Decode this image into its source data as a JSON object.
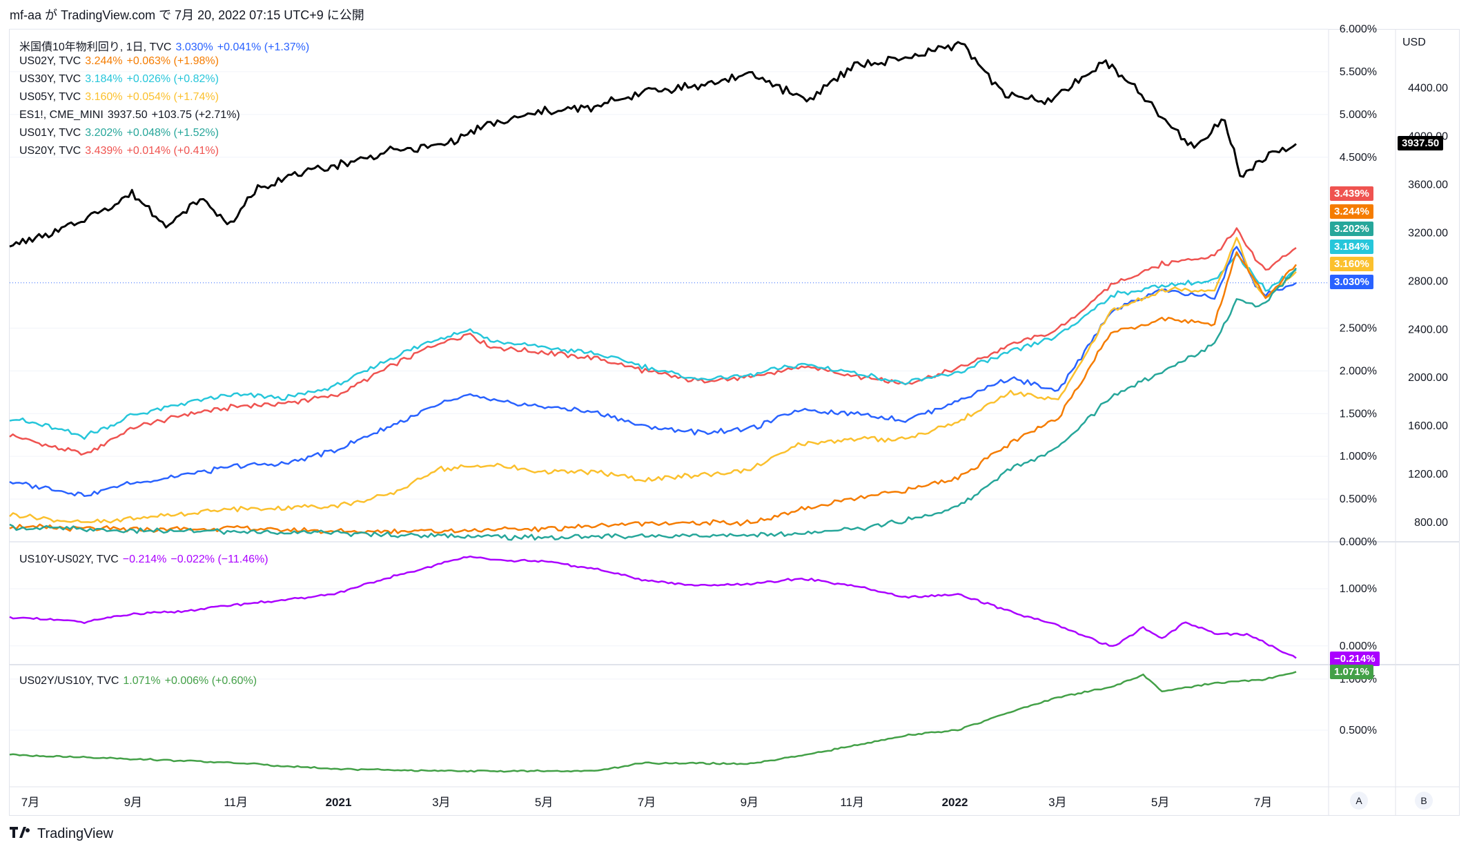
{
  "header": {
    "text": "mf-aa が TradingView.com で 7月 20, 2022 07:15 UTC+9 に公開"
  },
  "footer": {
    "brand": "TradingView",
    "logo": "tradingview-logo"
  },
  "axis_buttons": {
    "a": "A",
    "b": "B"
  },
  "colors": {
    "us10y": "#2962ff",
    "us02y": "#f57c00",
    "us30y": "#26c6da",
    "us05y": "#fbc02d",
    "es1": "#000000",
    "us01y": "#26a69a",
    "us20y": "#ef5350",
    "spread": "#aa00ff",
    "ratio": "#43a047",
    "grid": "#f0f3fa",
    "axis_text": "#131722"
  },
  "legend_main": [
    {
      "name": "米国債10年物利回り, 1日, TVC",
      "value": "3.030%",
      "change": "+0.041% (+1.37%)",
      "color": "#2962ff"
    },
    {
      "name": "US02Y, TVC",
      "value": "3.244%",
      "change": "+0.063% (+1.98%)",
      "color": "#f57c00"
    },
    {
      "name": "US30Y, TVC",
      "value": "3.184%",
      "change": "+0.026% (+0.82%)",
      "color": "#26c6da"
    },
    {
      "name": "US05Y, TVC",
      "value": "3.160%",
      "change": "+0.054% (+1.74%)",
      "color": "#fbc02d"
    },
    {
      "name": "ES1!, CME_MINI",
      "value": "3937.50",
      "change": "+103.75 (+2.71%)",
      "color": "#131722"
    },
    {
      "name": "US01Y, TVC",
      "value": "3.202%",
      "change": "+0.048% (+1.52%)",
      "color": "#26a69a"
    },
    {
      "name": "US20Y, TVC",
      "value": "3.439%",
      "change": "+0.014% (+0.41%)",
      "color": "#ef5350"
    }
  ],
  "legend_spread": {
    "name": "US10Y-US02Y, TVC",
    "value": "−0.214%",
    "change": "−0.022% (−11.46%)",
    "color": "#aa00ff"
  },
  "legend_ratio": {
    "name": "US02Y/US10Y, TVC",
    "value": "1.071%",
    "change": "+0.006% (+0.60%)",
    "color": "#43a047"
  },
  "chart_data": [
    {
      "type": "line",
      "panel": "main",
      "x_ticks": [
        "7月",
        "9月",
        "11月",
        "2021",
        "3月",
        "5月",
        "7月",
        "9月",
        "11月",
        "2022",
        "3月",
        "5月",
        "7月"
      ],
      "y_left_ticks": [
        "6.000%",
        "5.500%",
        "5.000%",
        "4.500%",
        "2.500%",
        "2.000%",
        "1.500%",
        "1.000%",
        "0.500%",
        "0.000%"
      ],
      "y_right_label": "USD",
      "y_right_ticks": [
        "4400.00",
        "4000.00",
        "3600.00",
        "3200.00",
        "2800.00",
        "2400.00",
        "2000.00",
        "1600.00",
        "1200.00",
        "800.00"
      ],
      "y_left_range": [
        0,
        6
      ],
      "y_right_range": [
        640,
        4890
      ],
      "last_value_badges": [
        {
          "label": "3937.50",
          "color": "#000000"
        },
        {
          "label": "3.439%",
          "color": "#ef5350"
        },
        {
          "label": "3.244%",
          "color": "#f57c00"
        },
        {
          "label": "3.202%",
          "color": "#26a69a"
        },
        {
          "label": "3.184%",
          "color": "#26c6da"
        },
        {
          "label": "3.160%",
          "color": "#fbc02d"
        },
        {
          "label": "3.030%",
          "color": "#2962ff"
        }
      ],
      "x_range": [
        "2020-06-22",
        "2022-07-19"
      ],
      "series": [
        {
          "name": "US20Y",
          "axis": "left",
          "color": "#ef5350",
          "x": [
            "2020-06-22",
            "2020-07-15",
            "2020-08-05",
            "2020-09-01",
            "2020-10-01",
            "2020-11-01",
            "2020-12-01",
            "2021-01-01",
            "2021-02-01",
            "2021-03-01",
            "2021-03-20",
            "2021-04-01",
            "2021-05-01",
            "2021-06-01",
            "2021-07-01",
            "2021-08-01",
            "2021-09-01",
            "2021-10-01",
            "2021-11-01",
            "2021-12-01",
            "2022-01-01",
            "2022-02-01",
            "2022-03-01",
            "2022-04-01",
            "2022-05-01",
            "2022-06-01",
            "2022-06-14",
            "2022-06-25",
            "2022-07-01",
            "2022-07-19"
          ],
          "y": [
            1.25,
            1.12,
            1.02,
            1.32,
            1.48,
            1.58,
            1.62,
            1.72,
            2.05,
            2.32,
            2.43,
            2.28,
            2.22,
            2.15,
            2.0,
            1.88,
            1.92,
            2.05,
            1.95,
            1.85,
            2.02,
            2.3,
            2.48,
            3.0,
            3.25,
            3.35,
            3.65,
            3.3,
            3.18,
            3.439
          ]
        },
        {
          "name": "US30Y",
          "axis": "left",
          "color": "#26c6da",
          "x": [
            "2020-06-22",
            "2020-07-15",
            "2020-08-05",
            "2020-09-01",
            "2020-10-01",
            "2020-11-01",
            "2020-12-01",
            "2021-01-01",
            "2021-02-01",
            "2021-03-01",
            "2021-03-20",
            "2021-04-01",
            "2021-05-01",
            "2021-06-01",
            "2021-07-01",
            "2021-08-01",
            "2021-09-01",
            "2021-10-01",
            "2021-11-01",
            "2021-12-01",
            "2022-01-01",
            "2022-02-01",
            "2022-03-01",
            "2022-04-01",
            "2022-05-01",
            "2022-06-01",
            "2022-06-14",
            "2022-06-25",
            "2022-07-01",
            "2022-07-19"
          ],
          "y": [
            1.45,
            1.35,
            1.23,
            1.47,
            1.62,
            1.72,
            1.68,
            1.83,
            2.15,
            2.38,
            2.48,
            2.35,
            2.28,
            2.2,
            2.05,
            1.9,
            1.95,
            2.08,
            1.98,
            1.85,
            1.98,
            2.22,
            2.4,
            2.88,
            3.0,
            3.05,
            3.35,
            3.1,
            2.95,
            3.184
          ]
        },
        {
          "name": "US10Y",
          "axis": "left",
          "color": "#2962ff",
          "x": [
            "2020-06-22",
            "2020-07-15",
            "2020-08-05",
            "2020-09-01",
            "2020-10-01",
            "2020-11-01",
            "2020-12-01",
            "2021-01-01",
            "2021-02-01",
            "2021-03-01",
            "2021-03-20",
            "2021-04-01",
            "2021-05-01",
            "2021-06-01",
            "2021-07-01",
            "2021-08-01",
            "2021-09-01",
            "2021-10-01",
            "2021-11-01",
            "2021-12-01",
            "2022-01-01",
            "2022-02-01",
            "2022-03-01",
            "2022-04-01",
            "2022-05-01",
            "2022-06-01",
            "2022-06-14",
            "2022-06-25",
            "2022-07-01",
            "2022-07-19"
          ],
          "y": [
            0.7,
            0.62,
            0.55,
            0.68,
            0.78,
            0.88,
            0.92,
            1.08,
            1.35,
            1.6,
            1.72,
            1.65,
            1.58,
            1.52,
            1.35,
            1.28,
            1.32,
            1.55,
            1.5,
            1.42,
            1.65,
            1.92,
            1.75,
            2.7,
            2.95,
            2.85,
            3.48,
            3.0,
            2.88,
            3.03
          ]
        },
        {
          "name": "US05Y",
          "axis": "left",
          "color": "#fbc02d",
          "x": [
            "2020-06-22",
            "2020-08-05",
            "2020-09-01",
            "2020-10-01",
            "2020-11-01",
            "2020-12-01",
            "2021-01-01",
            "2021-02-01",
            "2021-03-01",
            "2021-04-01",
            "2021-05-01",
            "2021-06-01",
            "2021-07-01",
            "2021-08-01",
            "2021-09-01",
            "2021-10-01",
            "2021-11-01",
            "2021-12-01",
            "2022-01-01",
            "2022-02-01",
            "2022-03-01",
            "2022-04-01",
            "2022-05-01",
            "2022-06-01",
            "2022-06-14",
            "2022-06-25",
            "2022-07-01",
            "2022-07-19"
          ],
          "y": [
            0.32,
            0.22,
            0.27,
            0.33,
            0.38,
            0.4,
            0.42,
            0.55,
            0.85,
            0.9,
            0.82,
            0.82,
            0.72,
            0.78,
            0.85,
            1.15,
            1.2,
            1.2,
            1.4,
            1.75,
            1.65,
            2.7,
            2.95,
            2.95,
            3.55,
            3.0,
            2.85,
            3.16
          ]
        },
        {
          "name": "US02Y",
          "axis": "left",
          "color": "#f57c00",
          "x": [
            "2020-06-22",
            "2020-09-01",
            "2020-11-01",
            "2021-01-01",
            "2021-03-01",
            "2021-05-01",
            "2021-07-01",
            "2021-09-01",
            "2021-10-01",
            "2021-11-01",
            "2021-12-01",
            "2022-01-01",
            "2022-02-01",
            "2022-03-01",
            "2022-04-01",
            "2022-05-01",
            "2022-06-01",
            "2022-06-14",
            "2022-06-25",
            "2022-07-01",
            "2022-07-19"
          ],
          "y": [
            0.18,
            0.14,
            0.16,
            0.12,
            0.13,
            0.15,
            0.22,
            0.22,
            0.38,
            0.5,
            0.6,
            0.75,
            1.15,
            1.45,
            2.45,
            2.6,
            2.55,
            3.4,
            3.05,
            2.85,
            3.244
          ]
        },
        {
          "name": "US01Y",
          "axis": "left",
          "color": "#26a69a",
          "x": [
            "2020-06-22",
            "2020-09-01",
            "2020-11-01",
            "2021-01-01",
            "2021-03-01",
            "2021-05-01",
            "2021-07-01",
            "2021-09-01",
            "2021-10-01",
            "2021-11-01",
            "2021-12-01",
            "2022-01-01",
            "2022-02-01",
            "2022-03-01",
            "2022-04-01",
            "2022-05-01",
            "2022-06-01",
            "2022-06-14",
            "2022-06-25",
            "2022-07-01",
            "2022-07-19"
          ],
          "y": [
            0.17,
            0.13,
            0.12,
            0.1,
            0.07,
            0.05,
            0.07,
            0.08,
            0.09,
            0.15,
            0.25,
            0.4,
            0.85,
            1.1,
            1.7,
            2.0,
            2.3,
            2.85,
            2.75,
            2.8,
            3.202
          ]
        },
        {
          "name": "ES1!",
          "axis": "right",
          "color": "#000000",
          "x": [
            "2020-06-22",
            "2020-07-15",
            "2020-08-01",
            "2020-09-02",
            "2020-09-24",
            "2020-10-12",
            "2020-10-30",
            "2020-11-15",
            "2020-12-01",
            "2021-01-01",
            "2021-02-01",
            "2021-03-01",
            "2021-04-01",
            "2021-05-01",
            "2021-06-01",
            "2021-07-01",
            "2021-08-01",
            "2021-09-02",
            "2021-10-04",
            "2021-11-01",
            "2021-12-01",
            "2022-01-03",
            "2022-01-27",
            "2022-02-23",
            "2022-03-29",
            "2022-04-15",
            "2022-05-01",
            "2022-05-20",
            "2022-06-07",
            "2022-06-16",
            "2022-07-01",
            "2022-07-19"
          ],
          "y": [
            3100,
            3180,
            3280,
            3520,
            3260,
            3480,
            3270,
            3580,
            3660,
            3760,
            3880,
            3920,
            4100,
            4200,
            4240,
            4380,
            4420,
            4520,
            4300,
            4590,
            4640,
            4780,
            4360,
            4280,
            4620,
            4400,
            4150,
            3900,
            4150,
            3670,
            3820,
            3937.5
          ]
        }
      ]
    },
    {
      "type": "line",
      "panel": "spread",
      "y_ticks": [
        "1.000%",
        "0.000%"
      ],
      "y_range": [
        -0.22,
        1.7
      ],
      "last_value_badge": {
        "label": "−0.214%",
        "color": "#aa00ff"
      },
      "series": [
        {
          "name": "US10Y-US02Y",
          "color": "#aa00ff",
          "x": [
            "2020-06-22",
            "2020-08-05",
            "2020-09-01",
            "2020-10-01",
            "2020-11-01",
            "2020-12-01",
            "2021-01-01",
            "2021-02-01",
            "2021-03-01",
            "2021-03-20",
            "2021-04-01",
            "2021-05-01",
            "2021-06-01",
            "2021-07-01",
            "2021-08-01",
            "2021-09-01",
            "2021-10-01",
            "2021-11-01",
            "2021-12-01",
            "2022-01-01",
            "2022-02-01",
            "2022-03-01",
            "2022-04-02",
            "2022-04-20",
            "2022-05-01",
            "2022-05-15",
            "2022-06-01",
            "2022-06-20",
            "2022-07-01",
            "2022-07-19"
          ],
          "y": [
            0.5,
            0.42,
            0.55,
            0.6,
            0.72,
            0.8,
            0.92,
            1.2,
            1.42,
            1.58,
            1.5,
            1.48,
            1.35,
            1.15,
            1.05,
            1.08,
            1.18,
            1.05,
            0.85,
            0.9,
            0.6,
            0.35,
            -0.02,
            0.32,
            0.12,
            0.42,
            0.22,
            0.2,
            0.05,
            -0.214
          ]
        }
      ]
    },
    {
      "type": "line",
      "panel": "ratio",
      "y_ticks": [
        "1.000%",
        "0.500%"
      ],
      "y_range": [
        0.0,
        1.08
      ],
      "last_value_badge": {
        "label": "1.071%",
        "color": "#43a047"
      },
      "series": [
        {
          "name": "US02Y/US10Y",
          "color": "#43a047",
          "x": [
            "2020-06-22",
            "2020-09-01",
            "2020-11-01",
            "2021-01-01",
            "2021-03-01",
            "2021-04-01",
            "2021-06-01",
            "2021-07-01",
            "2021-09-01",
            "2021-10-01",
            "2021-11-01",
            "2021-12-01",
            "2022-01-01",
            "2022-02-01",
            "2022-03-01",
            "2022-04-01",
            "2022-04-20",
            "2022-05-01",
            "2022-06-01",
            "2022-07-01",
            "2022-07-19"
          ],
          "y": [
            0.26,
            0.22,
            0.18,
            0.12,
            0.1,
            0.1,
            0.1,
            0.18,
            0.17,
            0.25,
            0.35,
            0.45,
            0.5,
            0.68,
            0.82,
            0.92,
            1.04,
            0.88,
            0.96,
            1.0,
            1.071
          ]
        }
      ]
    }
  ]
}
